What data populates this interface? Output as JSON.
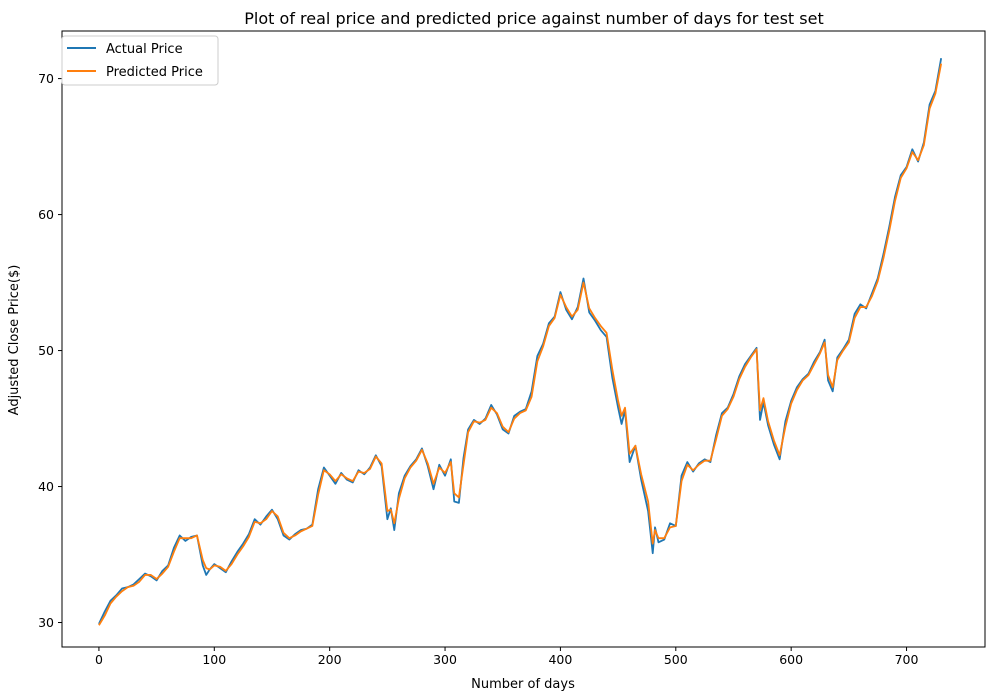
{
  "chart_data": {
    "type": "line",
    "title": "Plot of real price and predicted price against number of days for test set",
    "xlabel": "Number of days",
    "ylabel": "Adjusted Close Price($)",
    "xlim": [
      -32,
      768
    ],
    "ylim": [
      28.2,
      73.5
    ],
    "xticks": [
      0,
      100,
      200,
      300,
      400,
      500,
      600,
      700
    ],
    "yticks": [
      30,
      40,
      50,
      60,
      70
    ],
    "legend_position": "top-left",
    "series": [
      {
        "name": "Actual Price",
        "color": "#1f77b4",
        "x": [
          0,
          5,
          10,
          15,
          20,
          25,
          30,
          35,
          40,
          45,
          50,
          55,
          60,
          65,
          70,
          75,
          80,
          85,
          90,
          93,
          96,
          100,
          105,
          110,
          115,
          120,
          125,
          130,
          135,
          140,
          145,
          150,
          155,
          160,
          165,
          170,
          175,
          180,
          185,
          190,
          195,
          200,
          205,
          210,
          215,
          220,
          225,
          230,
          235,
          240,
          245,
          250,
          253,
          256,
          260,
          265,
          270,
          275,
          280,
          285,
          290,
          295,
          300,
          305,
          308,
          312,
          316,
          320,
          325,
          330,
          335,
          340,
          345,
          350,
          355,
          360,
          365,
          370,
          375,
          380,
          385,
          390,
          395,
          400,
          405,
          410,
          415,
          420,
          425,
          430,
          435,
          440,
          445,
          450,
          453,
          456,
          460,
          465,
          470,
          476,
          480,
          482,
          485,
          490,
          495,
          500,
          505,
          510,
          515,
          520,
          525,
          530,
          535,
          540,
          545,
          550,
          555,
          560,
          565,
          570,
          573,
          576,
          580,
          585,
          590,
          595,
          600,
          605,
          610,
          615,
          620,
          625,
          629,
          632,
          636,
          640,
          645,
          650,
          655,
          660,
          665,
          670,
          675,
          680,
          685,
          690,
          695,
          700,
          705,
          710,
          715,
          720,
          725,
          730
        ],
        "values": [
          29.9,
          30.8,
          31.6,
          32.0,
          32.5,
          32.6,
          32.8,
          33.2,
          33.6,
          33.4,
          33.1,
          33.8,
          34.2,
          35.5,
          36.4,
          36.0,
          36.3,
          36.4,
          34.2,
          33.5,
          33.9,
          34.3,
          34.0,
          33.7,
          34.5,
          35.2,
          35.8,
          36.5,
          37.6,
          37.2,
          37.8,
          38.3,
          37.6,
          36.4,
          36.1,
          36.5,
          36.8,
          36.9,
          37.2,
          39.8,
          41.4,
          40.8,
          40.2,
          41.0,
          40.5,
          40.3,
          41.2,
          40.9,
          41.4,
          42.3,
          41.5,
          37.6,
          38.4,
          36.8,
          39.5,
          40.8,
          41.5,
          42.0,
          42.8,
          41.5,
          39.8,
          41.6,
          40.8,
          42.0,
          38.9,
          38.8,
          42.1,
          44.2,
          44.9,
          44.6,
          45.0,
          46.0,
          45.3,
          44.2,
          43.9,
          45.2,
          45.5,
          45.7,
          47.0,
          49.6,
          50.5,
          52.0,
          52.5,
          54.3,
          53.0,
          52.3,
          53.2,
          55.3,
          52.8,
          52.2,
          51.5,
          51.0,
          48.0,
          45.8,
          44.6,
          45.6,
          41.8,
          43.0,
          40.5,
          38.2,
          35.1,
          37.0,
          35.9,
          36.1,
          37.3,
          37.1,
          40.8,
          41.8,
          41.1,
          41.7,
          42.0,
          41.8,
          43.8,
          45.4,
          45.8,
          46.8,
          48.1,
          49.0,
          49.6,
          50.2,
          44.9,
          46.2,
          44.5,
          43.1,
          42.0,
          44.8,
          46.3,
          47.3,
          47.9,
          48.3,
          49.2,
          49.9,
          50.8,
          47.8,
          47.0,
          49.5,
          50.1,
          50.8,
          52.7,
          53.4,
          53.1,
          54.2,
          55.3,
          57.1,
          59.1,
          61.3,
          62.9,
          63.5,
          64.8,
          63.9,
          65.3,
          68.1,
          69.1,
          71.5
        ]
      },
      {
        "name": "Predicted Price",
        "color": "#ff7f0e",
        "x": [
          0,
          5,
          10,
          15,
          20,
          25,
          30,
          35,
          40,
          45,
          50,
          55,
          60,
          65,
          70,
          75,
          80,
          85,
          90,
          93,
          96,
          100,
          105,
          110,
          115,
          120,
          125,
          130,
          135,
          140,
          145,
          150,
          155,
          160,
          165,
          170,
          175,
          180,
          185,
          190,
          195,
          200,
          205,
          210,
          215,
          220,
          225,
          230,
          235,
          240,
          245,
          250,
          253,
          256,
          260,
          265,
          270,
          275,
          280,
          285,
          290,
          295,
          300,
          305,
          308,
          312,
          316,
          320,
          325,
          330,
          335,
          340,
          345,
          350,
          355,
          360,
          365,
          370,
          375,
          380,
          385,
          390,
          395,
          400,
          405,
          410,
          415,
          420,
          425,
          430,
          435,
          440,
          445,
          450,
          453,
          456,
          460,
          465,
          470,
          476,
          480,
          482,
          485,
          490,
          495,
          500,
          505,
          510,
          515,
          520,
          525,
          530,
          535,
          540,
          545,
          550,
          555,
          560,
          565,
          570,
          573,
          576,
          580,
          585,
          590,
          595,
          600,
          605,
          610,
          615,
          620,
          625,
          629,
          632,
          636,
          640,
          645,
          650,
          655,
          660,
          665,
          670,
          675,
          680,
          685,
          690,
          695,
          700,
          705,
          710,
          715,
          720,
          725,
          730
        ],
        "values": [
          29.8,
          30.5,
          31.4,
          31.9,
          32.3,
          32.6,
          32.7,
          33.0,
          33.5,
          33.5,
          33.2,
          33.6,
          34.1,
          35.2,
          36.2,
          36.2,
          36.2,
          36.4,
          34.6,
          34.0,
          33.9,
          34.2,
          34.1,
          33.8,
          34.3,
          35.0,
          35.6,
          36.3,
          37.4,
          37.3,
          37.6,
          38.2,
          37.8,
          36.6,
          36.2,
          36.4,
          36.7,
          36.9,
          37.1,
          39.4,
          41.2,
          40.9,
          40.4,
          40.9,
          40.6,
          40.4,
          41.1,
          41.0,
          41.3,
          42.2,
          41.7,
          38.2,
          38.3,
          37.3,
          39.1,
          40.6,
          41.4,
          41.9,
          42.7,
          41.7,
          40.2,
          41.4,
          41.0,
          41.8,
          39.5,
          39.2,
          41.6,
          44.0,
          44.8,
          44.7,
          44.9,
          45.8,
          45.4,
          44.4,
          44.0,
          45.0,
          45.4,
          45.6,
          46.6,
          49.2,
          50.3,
          51.8,
          52.4,
          54.1,
          53.2,
          52.5,
          53.0,
          55.0,
          53.1,
          52.4,
          51.8,
          51.3,
          48.6,
          46.3,
          45.2,
          45.8,
          42.4,
          43.0,
          40.9,
          38.9,
          35.8,
          36.8,
          36.2,
          36.2,
          37.0,
          37.1,
          40.4,
          41.6,
          41.2,
          41.6,
          41.9,
          41.9,
          43.5,
          45.2,
          45.7,
          46.6,
          47.9,
          48.8,
          49.5,
          50.1,
          45.6,
          46.5,
          44.8,
          43.4,
          42.3,
          44.4,
          46.1,
          47.1,
          47.8,
          48.2,
          49.0,
          49.8,
          50.6,
          48.2,
          47.3,
          49.3,
          50.0,
          50.6,
          52.4,
          53.2,
          53.2,
          54.0,
          55.1,
          56.8,
          58.8,
          61.0,
          62.7,
          63.4,
          64.6,
          64.0,
          65.1,
          67.8,
          68.9,
          71.1
        ]
      }
    ]
  }
}
